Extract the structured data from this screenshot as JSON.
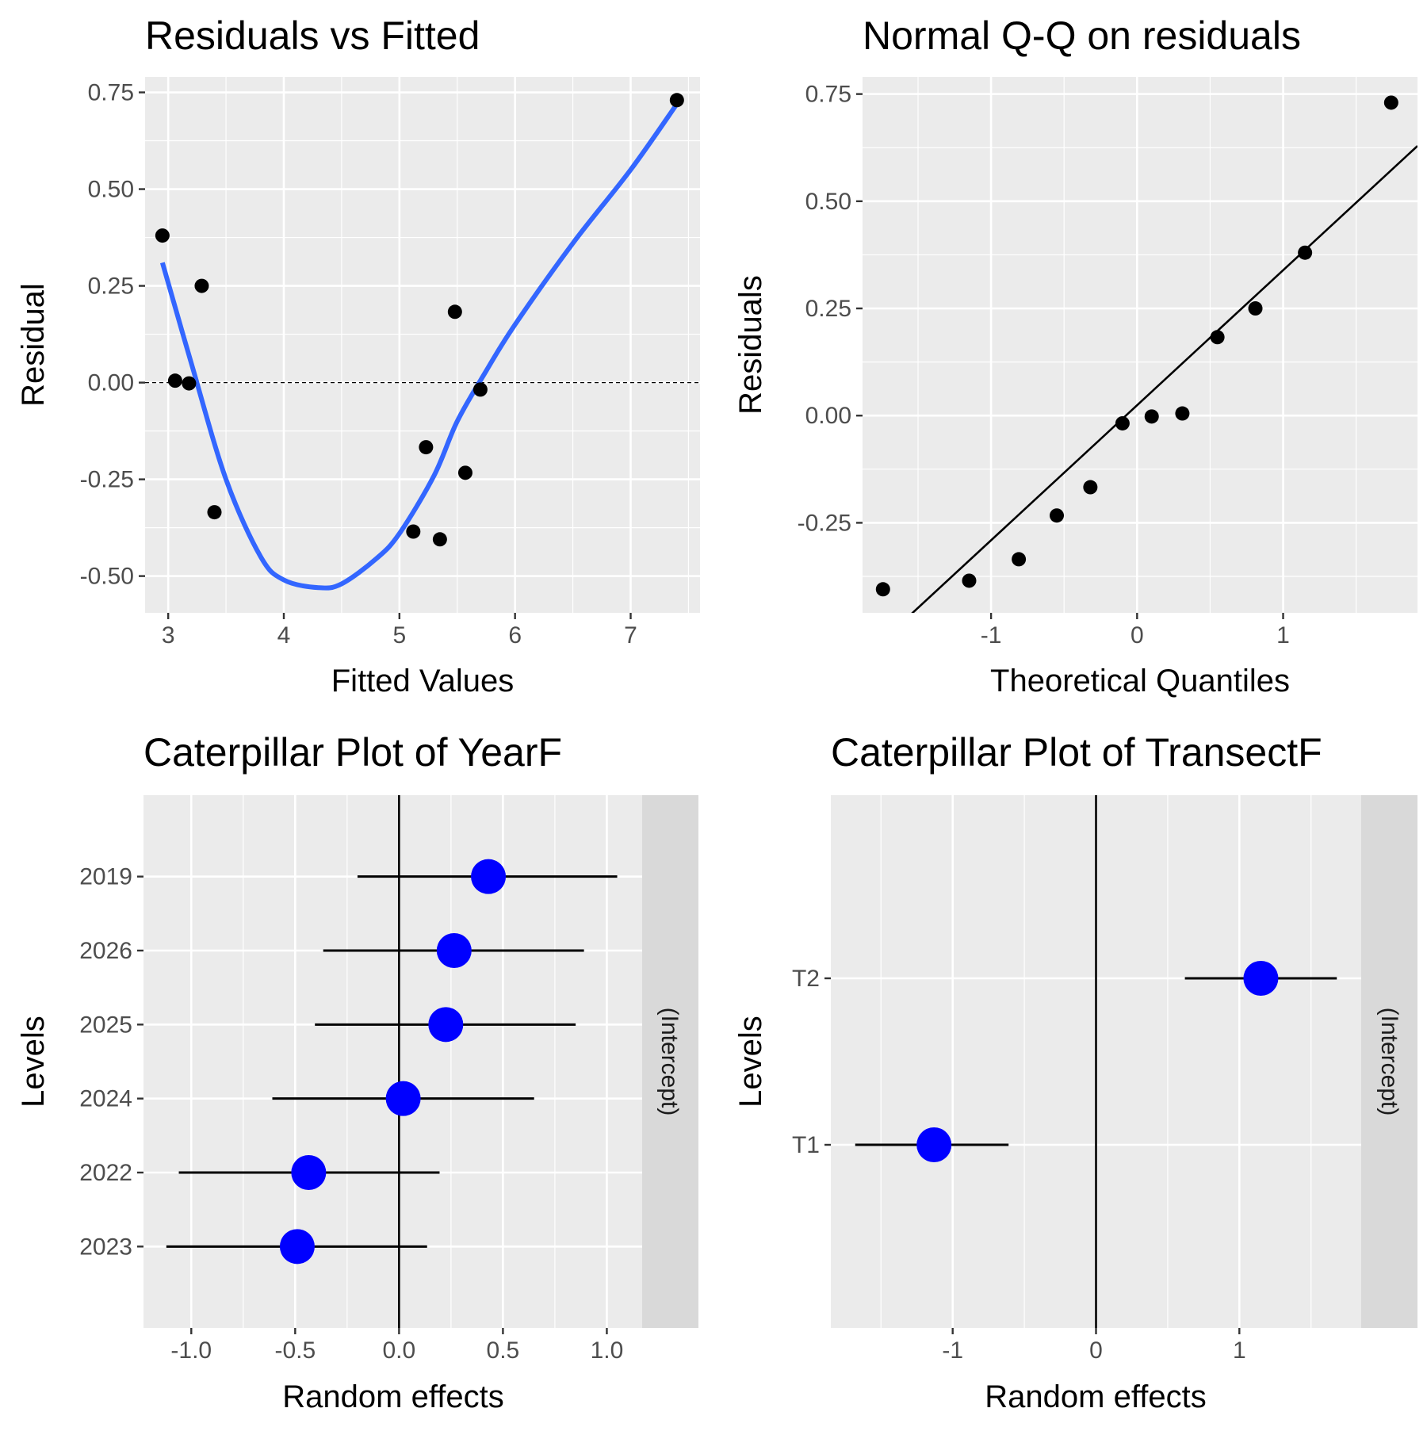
{
  "chart_data": [
    {
      "id": "resid",
      "type": "scatter",
      "title": "Residuals vs Fitted",
      "xlabel": "Fitted Values",
      "ylabel": "Residual",
      "xlim": [
        2.8,
        7.6
      ],
      "ylim": [
        -0.595,
        0.79
      ],
      "x_ticks": [
        3,
        4,
        5,
        6,
        7
      ],
      "x_tick_labels": [
        "3",
        "4",
        "5",
        "6",
        "7"
      ],
      "y_ticks": [
        -0.5,
        -0.25,
        0,
        0.25,
        0.5,
        0.75
      ],
      "y_tick_labels": [
        "-0.50",
        "-0.25",
        "0.00",
        "0.25",
        "0.50",
        "0.75"
      ],
      "grid": true,
      "reference_line": {
        "y": 0,
        "style": "dashed"
      },
      "points": [
        {
          "x": 2.95,
          "y": 0.38
        },
        {
          "x": 3.06,
          "y": 0.005
        },
        {
          "x": 3.18,
          "y": -0.002
        },
        {
          "x": 3.29,
          "y": 0.25
        },
        {
          "x": 3.4,
          "y": -0.335
        },
        {
          "x": 5.12,
          "y": -0.385
        },
        {
          "x": 5.23,
          "y": -0.167
        },
        {
          "x": 5.35,
          "y": -0.405
        },
        {
          "x": 5.48,
          "y": 0.183
        },
        {
          "x": 5.57,
          "y": -0.233
        },
        {
          "x": 5.7,
          "y": -0.018
        },
        {
          "x": 7.4,
          "y": 0.73
        }
      ],
      "smooth": {
        "color": "#3366ff",
        "x": [
          2.95,
          3.2,
          3.5,
          3.8,
          4.0,
          4.3,
          4.5,
          4.8,
          5.0,
          5.3,
          5.5,
          5.75,
          6.0,
          6.5,
          7.0,
          7.4
        ],
        "y": [
          0.31,
          0.05,
          -0.25,
          -0.45,
          -0.51,
          -0.53,
          -0.52,
          -0.455,
          -0.39,
          -0.24,
          -0.1,
          0.03,
          0.15,
          0.36,
          0.55,
          0.72
        ]
      }
    },
    {
      "id": "qq",
      "type": "scatter",
      "title": "Normal Q-Q on residuals",
      "xlabel": "Theoretical Quantiles",
      "ylabel": "Residuals",
      "xlim": [
        -1.88,
        1.92
      ],
      "ylim": [
        -0.46,
        0.79
      ],
      "x_ticks": [
        -1,
        0,
        1
      ],
      "x_tick_labels": [
        "-1",
        "0",
        "1"
      ],
      "y_ticks": [
        -0.25,
        0,
        0.25,
        0.5,
        0.75
      ],
      "y_tick_labels": [
        "-0.25",
        "0.00",
        "0.25",
        "0.50",
        "0.75"
      ],
      "grid": true,
      "points": [
        {
          "x": -1.74,
          "y": -0.405
        },
        {
          "x": -1.15,
          "y": -0.385
        },
        {
          "x": -0.81,
          "y": -0.335
        },
        {
          "x": -0.55,
          "y": -0.233
        },
        {
          "x": -0.32,
          "y": -0.167
        },
        {
          "x": -0.1,
          "y": -0.018
        },
        {
          "x": 0.1,
          "y": -0.002
        },
        {
          "x": 0.31,
          "y": 0.005
        },
        {
          "x": 0.55,
          "y": 0.183
        },
        {
          "x": 0.81,
          "y": 0.25
        },
        {
          "x": 1.15,
          "y": 0.38
        },
        {
          "x": 1.74,
          "y": 0.73
        }
      ],
      "qq_line": {
        "x": [
          -1.88,
          1.92
        ],
        "y": [
          -0.568,
          0.629
        ]
      }
    },
    {
      "id": "year",
      "type": "scatter",
      "title": "Caterpillar Plot of  YearF",
      "xlabel": "Random effects",
      "ylabel": "Levels",
      "strip_label": "(Intercept)",
      "xlim": [
        -1.23,
        1.17
      ],
      "x_ticks": [
        -1,
        -0.5,
        0,
        0.5,
        1
      ],
      "x_tick_labels": [
        "-1.0",
        "-0.5",
        "0.0",
        "0.5",
        "1.0"
      ],
      "categories": [
        "2019",
        "2026",
        "2025",
        "2024",
        "2022",
        "2023"
      ],
      "values": [
        0.43,
        0.265,
        0.225,
        0.02,
        -0.435,
        -0.49
      ],
      "lower": [
        -0.2,
        -0.365,
        -0.405,
        -0.61,
        -1.06,
        -1.12
      ],
      "upper": [
        1.05,
        0.89,
        0.85,
        0.65,
        0.195,
        0.135
      ],
      "reference_line": {
        "x": 0
      },
      "point_color": "#0000ff"
    },
    {
      "id": "transect",
      "type": "scatter",
      "title": "Caterpillar Plot of  TransectF",
      "xlabel": "Random effects",
      "ylabel": "Levels",
      "strip_label": "(Intercept)",
      "xlim": [
        -1.85,
        1.85
      ],
      "x_ticks": [
        -1,
        0,
        1
      ],
      "x_tick_labels": [
        "-1",
        "0",
        "1"
      ],
      "categories": [
        "T2",
        "T1"
      ],
      "values": [
        1.15,
        -1.13
      ],
      "lower": [
        0.62,
        -1.68
      ],
      "upper": [
        1.68,
        -0.61
      ],
      "reference_line": {
        "x": 0
      },
      "point_color": "#0000ff"
    }
  ]
}
